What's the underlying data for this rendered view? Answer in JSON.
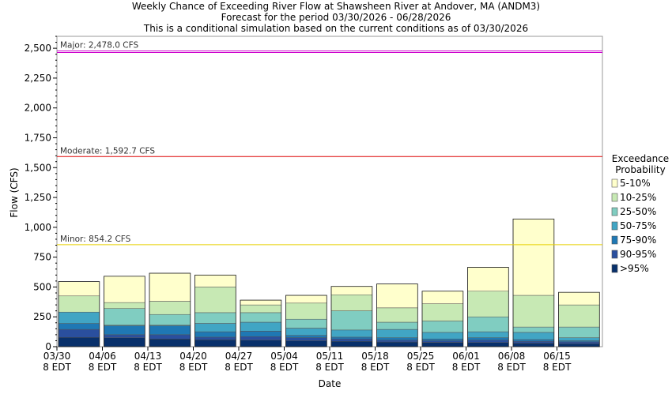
{
  "chart_data": {
    "type": "bar",
    "title": "Weekly Chance of Exceeding River Flow at Shawsheen River at Andover, MA (ANDM3)",
    "subtitle": "Forecast for the period 03/30/2026 - 06/28/2026",
    "subtitle2": "This is a conditional simulation based on the current conditions as of 03/30/2026",
    "xlabel": "Date",
    "ylabel": "Flow (CFS)",
    "ylim": [
      0,
      2600
    ],
    "yticks": [
      0,
      250,
      500,
      750,
      1000,
      1250,
      1500,
      1750,
      2000,
      2250,
      2500
    ],
    "ytick_labels": [
      "0",
      "250",
      "500",
      "750",
      "1,000",
      "1,250",
      "1,500",
      "1,750",
      "2,000",
      "2,250",
      "2,500"
    ],
    "categories": [
      "03/30",
      "04/06",
      "04/13",
      "04/20",
      "04/27",
      "05/04",
      "05/11",
      "05/18",
      "05/25",
      "06/01",
      "06/08",
      "06/15"
    ],
    "category_sublabel": "8 EDT",
    "legend_title": [
      "Exceedance",
      "Probability"
    ],
    "legend_position": "right",
    "grid": false,
    "series": [
      {
        "name": ">95%",
        "color": "#08306b",
        "values": [
          78,
          75,
          65,
          58,
          55,
          50,
          45,
          40,
          36,
          35,
          30,
          25
        ]
      },
      {
        "name": "90-95%",
        "color": "#2a4f9e",
        "values": [
          145,
          100,
          100,
          80,
          85,
          75,
          65,
          55,
          50,
          55,
          45,
          40
        ]
      },
      {
        "name": "75-90%",
        "color": "#1f78b4",
        "values": [
          195,
          175,
          175,
          125,
          130,
          95,
          80,
          75,
          65,
          75,
          60,
          50
        ]
      },
      {
        "name": "50-75%",
        "color": "#41a5c4",
        "values": [
          290,
          180,
          180,
          195,
          205,
          155,
          140,
          145,
          120,
          125,
          120,
          75
        ]
      },
      {
        "name": "25-50%",
        "color": "#80cdc1",
        "values": [
          290,
          320,
          270,
          285,
          285,
          230,
          300,
          205,
          215,
          250,
          165,
          165
        ]
      },
      {
        "name": "10-25%",
        "color": "#c7e9b4",
        "values": [
          425,
          370,
          380,
          500,
          350,
          365,
          435,
          325,
          360,
          465,
          430,
          350
        ]
      },
      {
        "name": "5-10%",
        "color": "#ffffcc",
        "values": [
          545,
          590,
          615,
          600,
          390,
          430,
          505,
          525,
          465,
          665,
          1070,
          455
        ]
      }
    ],
    "thresholds": [
      {
        "label": "Major: 2,478.0 CFS",
        "value": 2478.0,
        "color": "#cc00cc"
      },
      {
        "label": "Moderate: 1,592.7 CFS",
        "value": 1592.7,
        "color": "#dd0000"
      },
      {
        "label": "Minor: 854.2 CFS",
        "value": 854.2,
        "color": "#e8d000"
      }
    ]
  }
}
